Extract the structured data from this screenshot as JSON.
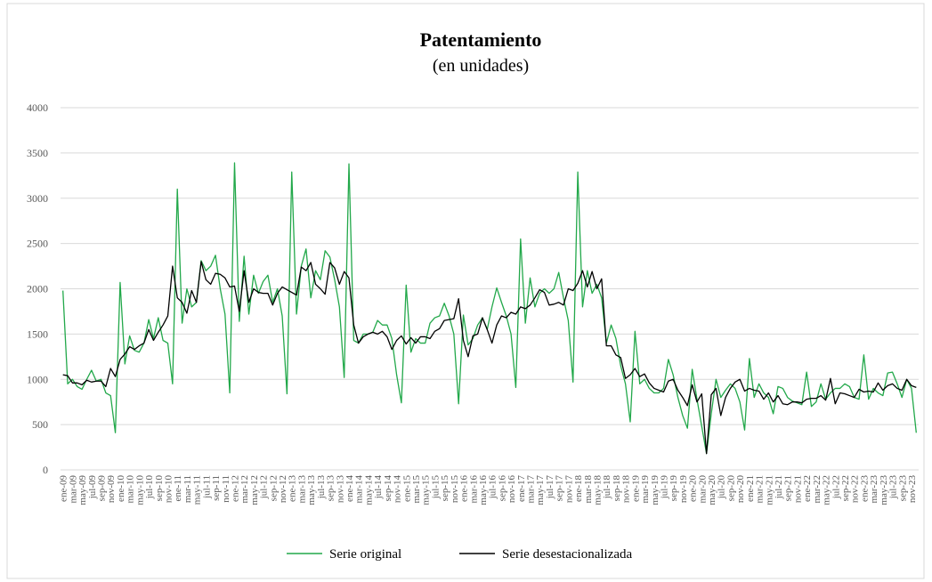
{
  "chart_data": {
    "type": "line",
    "title": "Patentamiento",
    "subtitle": "(en unidades)",
    "categories": [
      "ene-09",
      null,
      "mar-09",
      null,
      "may-09",
      null,
      "jul-09",
      null,
      "sep-09",
      null,
      "nov-09",
      null,
      "ene-10",
      null,
      "mar-10",
      null,
      "may-10",
      null,
      "jul-10",
      null,
      "sep-10",
      null,
      "nov-10",
      null,
      "ene-11",
      null,
      "mar-11",
      null,
      "may-11",
      null,
      "jul-11",
      null,
      "sep-11",
      null,
      "nov-11",
      null,
      "ene-12",
      null,
      "mar-12",
      null,
      "may-12",
      null,
      "jul-12",
      null,
      "sep-12",
      null,
      "nov-12",
      null,
      "ene-13",
      null,
      "mar-13",
      null,
      "may-13",
      null,
      "jul-13",
      null,
      "sep-13",
      null,
      "nov-13",
      null,
      "ene-14",
      null,
      "mar-14",
      null,
      "may-14",
      null,
      "jul-14",
      null,
      "sep-14",
      null,
      "nov-14",
      null,
      "ene-15",
      null,
      "mar-15",
      null,
      "may-15",
      null,
      "jul-15",
      null,
      "sep-15",
      null,
      "nov-15",
      null,
      "ene-16",
      null,
      "mar-16",
      null,
      "may-16",
      null,
      "jul-16",
      null,
      "sep-16",
      null,
      "nov-16",
      null,
      "ene-17",
      null,
      "mar-17",
      null,
      "may-17",
      null,
      "jul-17",
      null,
      "sep-17",
      null,
      "nov-17",
      null,
      "ene-18",
      null,
      "mar-18",
      null,
      "may-18",
      null,
      "jul-18",
      null,
      "sep-18",
      null,
      "nov-18",
      null,
      "ene-19",
      null,
      "mar-19",
      null,
      "may-19",
      null,
      "jul-19",
      null,
      "sep-19",
      null,
      "nov-19",
      null,
      "ene-20",
      null,
      "mar-20",
      null,
      "may-20",
      null,
      "jul-20",
      null,
      "sep-20",
      null,
      "nov-20",
      null,
      "ene-21",
      null,
      "mar-21",
      null,
      "may-21",
      null,
      "jul-21",
      null,
      "sep-21",
      null,
      "nov-21",
      null,
      "ene-22",
      null,
      "mar-22",
      null,
      "may-22",
      null,
      "jul-22",
      null,
      "sep-22",
      null,
      "nov-22",
      null,
      "ene-23",
      null,
      "mar-23",
      null,
      "may-23",
      null,
      "jul-23",
      null,
      "sep-23",
      null,
      "nov-23",
      null
    ],
    "series": [
      {
        "name": "Serie original",
        "color": "#22a84a",
        "values": [
          1980,
          950,
          1000,
          920,
          890,
          1000,
          1100,
          980,
          1000,
          850,
          820,
          410,
          2070,
          1170,
          1480,
          1320,
          1300,
          1400,
          1660,
          1450,
          1680,
          1430,
          1400,
          950,
          3100,
          1620,
          2000,
          1800,
          1850,
          2310,
          2200,
          2250,
          2370,
          2000,
          1720,
          850,
          3390,
          1640,
          2360,
          1720,
          2150,
          1950,
          2080,
          2150,
          1850,
          2000,
          1700,
          840,
          3290,
          1720,
          2250,
          2440,
          1900,
          2200,
          2100,
          2420,
          2350,
          2100,
          1800,
          1020,
          3380,
          1430,
          1400,
          1500,
          1500,
          1520,
          1650,
          1600,
          1600,
          1450,
          1050,
          740,
          2040,
          1300,
          1450,
          1400,
          1400,
          1620,
          1680,
          1700,
          1840,
          1700,
          1500,
          730,
          1710,
          1380,
          1450,
          1600,
          1680,
          1550,
          1800,
          2010,
          1850,
          1700,
          1500,
          910,
          2550,
          1620,
          2120,
          1800,
          1950,
          2000,
          1950,
          2000,
          2180,
          1900,
          1650,
          970,
          3290,
          1800,
          2200,
          1950,
          2050,
          1900,
          1400,
          1600,
          1450,
          1150,
          950,
          530,
          1530,
          950,
          1000,
          900,
          850,
          850,
          900,
          1220,
          1050,
          800,
          600,
          460,
          1110,
          780,
          480,
          180,
          620,
          1000,
          800,
          880,
          950,
          900,
          750,
          440,
          1230,
          800,
          950,
          850,
          800,
          620,
          920,
          900,
          800,
          760,
          740,
          720,
          1080,
          700,
          750,
          950,
          780,
          850,
          900,
          900,
          950,
          920,
          800,
          780,
          1270,
          780,
          900,
          850,
          820,
          1070,
          1080,
          950,
          800,
          1000,
          900,
          410
        ]
      },
      {
        "name": "Serie desestacionalizada",
        "color": "#000000",
        "values": [
          1050,
          1040,
          960,
          960,
          940,
          990,
          970,
          980,
          980,
          920,
          1120,
          1030,
          1220,
          1280,
          1360,
          1330,
          1370,
          1400,
          1550,
          1430,
          1520,
          1600,
          1700,
          2250,
          1900,
          1850,
          1730,
          1980,
          1850,
          2300,
          2100,
          2050,
          2170,
          2160,
          2120,
          2020,
          2030,
          1750,
          2200,
          1850,
          2000,
          1960,
          1950,
          1950,
          1820,
          1950,
          2020,
          1990,
          1960,
          1930,
          2240,
          2200,
          2290,
          2050,
          2000,
          1940,
          2290,
          2230,
          2050,
          2190,
          2120,
          1600,
          1400,
          1470,
          1500,
          1520,
          1500,
          1530,
          1470,
          1330,
          1430,
          1480,
          1390,
          1460,
          1400,
          1470,
          1470,
          1450,
          1530,
          1560,
          1650,
          1660,
          1670,
          1890,
          1430,
          1250,
          1480,
          1500,
          1680,
          1550,
          1400,
          1600,
          1700,
          1680,
          1740,
          1720,
          1800,
          1780,
          1820,
          1900,
          1990,
          1960,
          1820,
          1830,
          1850,
          1820,
          2000,
          1980,
          2060,
          2200,
          2020,
          2190,
          2000,
          2110,
          1370,
          1370,
          1270,
          1240,
          1010,
          1050,
          1120,
          1030,
          1060,
          960,
          900,
          880,
          860,
          980,
          1000,
          880,
          800,
          710,
          940,
          750,
          840,
          180,
          830,
          900,
          600,
          800,
          900,
          970,
          1000,
          870,
          900,
          880,
          870,
          780,
          850,
          750,
          820,
          730,
          720,
          750,
          750,
          740,
          780,
          790,
          790,
          820,
          770,
          1010,
          730,
          850,
          840,
          820,
          800,
          890,
          860,
          870,
          860,
          960,
          880,
          930,
          950,
          900,
          880,
          1000,
          930,
          910
        ]
      }
    ],
    "ylim": [
      0,
      4000
    ],
    "yticks": [
      0,
      500,
      1000,
      1500,
      2000,
      2500,
      3000,
      3500,
      4000
    ],
    "grid": true,
    "legend": "bottom"
  }
}
